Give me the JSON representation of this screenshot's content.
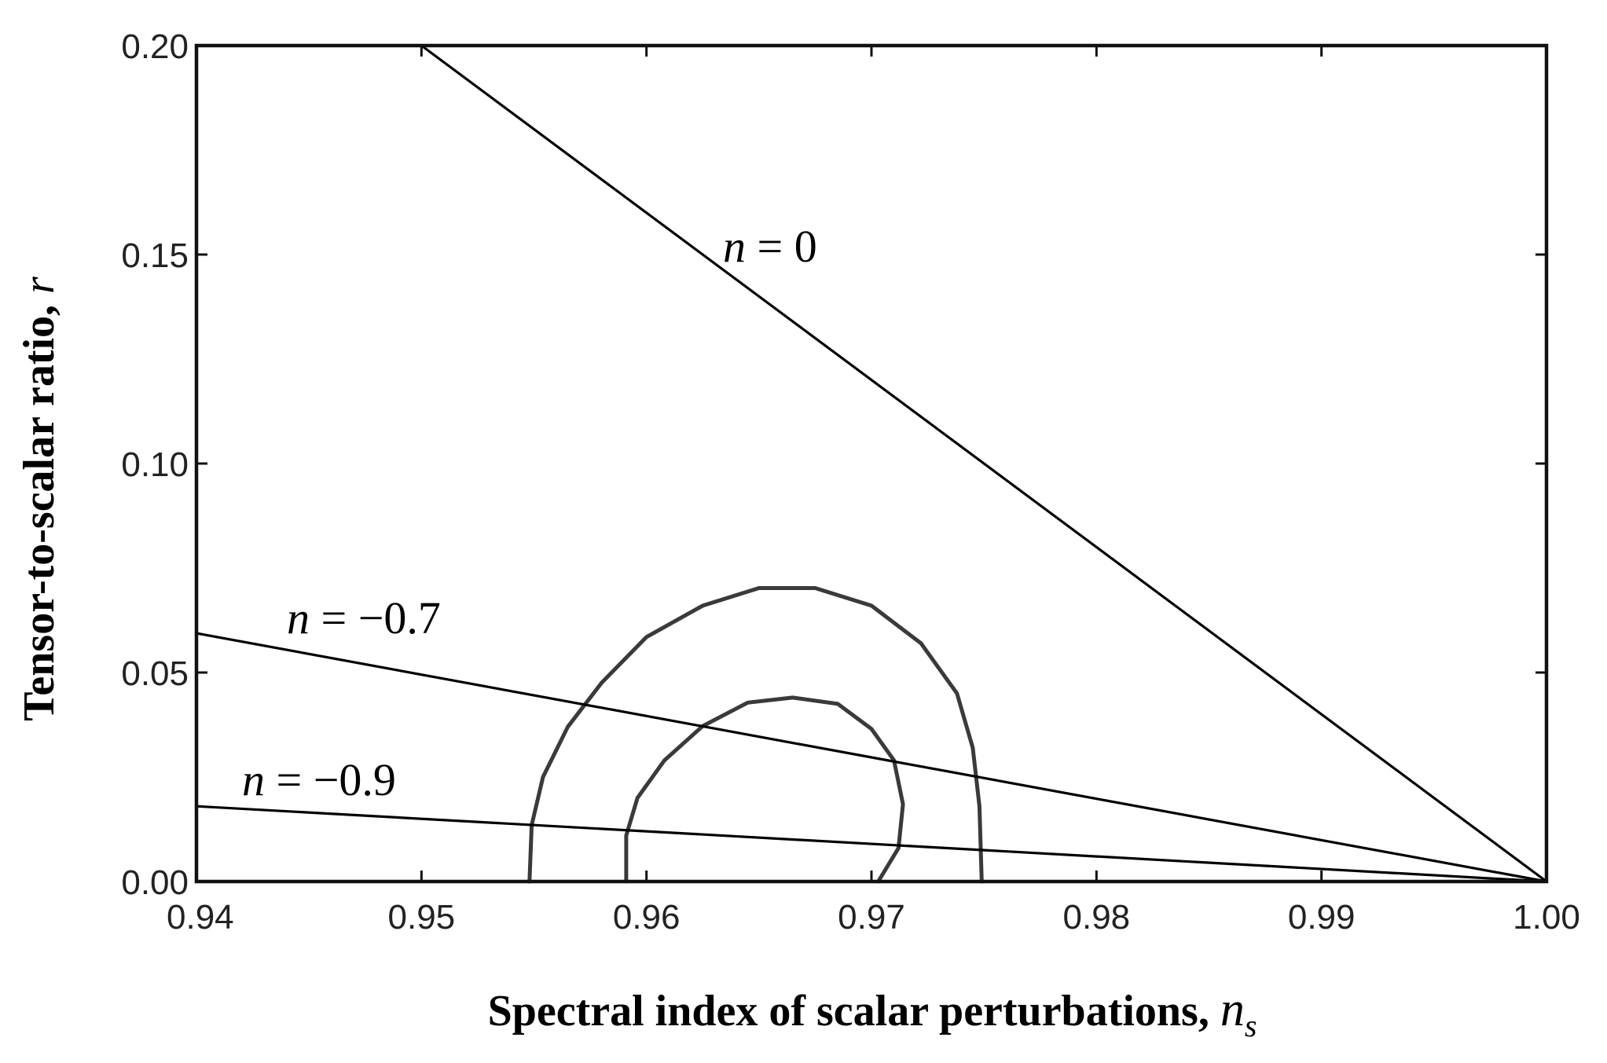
{
  "chart_data": {
    "type": "line",
    "title": "",
    "xlabel": "Spectral index of scalar perturbations,",
    "xlabel_symbol": "n",
    "xlabel_subscript": "s",
    "ylabel": "Tensor-to-scalar ratio,",
    "ylabel_symbol": "r",
    "xlim": [
      0.94,
      1.0
    ],
    "ylim": [
      0.0,
      0.2
    ],
    "xticks": [
      "0.94",
      "0.95",
      "0.96",
      "0.97",
      "0.98",
      "0.99",
      "1.00"
    ],
    "yticks": [
      "0.00",
      "0.05",
      "0.10",
      "0.15",
      "0.20"
    ],
    "grid": false,
    "legend": "none",
    "series": [
      {
        "label_var": "n",
        "label_rest": " = 0",
        "x": [
          0.95,
          1.0
        ],
        "y": [
          0.2,
          0.0
        ]
      },
      {
        "label_var": "n",
        "label_rest": " = −0.7",
        "x": [
          0.94,
          1.0
        ],
        "y": [
          0.0594,
          0.0
        ]
      },
      {
        "label_var": "n",
        "label_rest": " = −0.9",
        "x": [
          0.94,
          1.0
        ],
        "y": [
          0.018,
          0.0
        ]
      }
    ],
    "contours": [
      {
        "level": "outer",
        "x": [
          0.9548,
          0.9549,
          0.9554,
          0.9565,
          0.958,
          0.96,
          0.9625,
          0.965,
          0.9675,
          0.97,
          0.9722,
          0.9738,
          0.9745,
          0.9748,
          0.9749
        ],
        "y": [
          0.0,
          0.0135,
          0.025,
          0.037,
          0.0475,
          0.0585,
          0.066,
          0.0702,
          0.0702,
          0.066,
          0.057,
          0.045,
          0.032,
          0.018,
          0.0
        ]
      },
      {
        "level": "inner",
        "x": [
          0.9591,
          0.9591,
          0.9596,
          0.9608,
          0.9625,
          0.9645,
          0.9665,
          0.9685,
          0.97,
          0.971,
          0.9714,
          0.9712,
          0.9703
        ],
        "y": [
          0.0,
          0.011,
          0.02,
          0.029,
          0.0372,
          0.0428,
          0.044,
          0.0425,
          0.0365,
          0.029,
          0.0185,
          0.008,
          0.0
        ]
      }
    ]
  }
}
